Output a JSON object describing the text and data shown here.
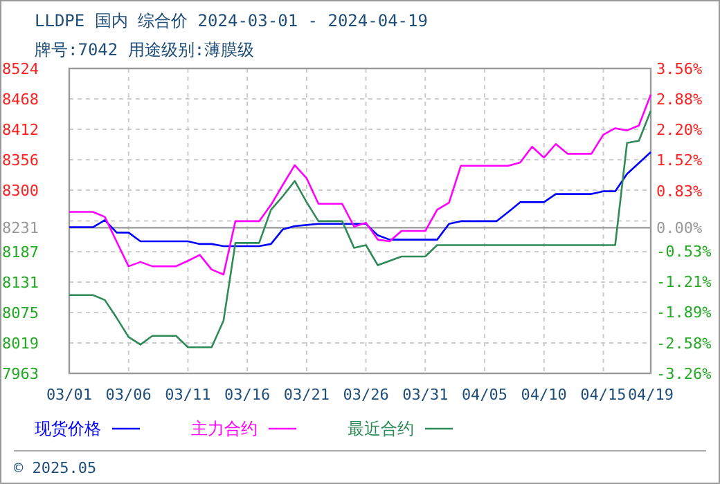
{
  "chart_data": {
    "type": "line",
    "title": "LLDPE 国内 综合价 2024-03-01 - 2024-04-19",
    "subtitle": "牌号:7042 用途级别:薄膜级",
    "x": [
      "2024-03-01",
      "2024-03-02",
      "2024-03-03",
      "2024-03-04",
      "2024-03-05",
      "2024-03-06",
      "2024-03-07",
      "2024-03-08",
      "2024-03-09",
      "2024-03-10",
      "2024-03-11",
      "2024-03-12",
      "2024-03-13",
      "2024-03-14",
      "2024-03-15",
      "2024-03-16",
      "2024-03-17",
      "2024-03-18",
      "2024-03-19",
      "2024-03-20",
      "2024-03-21",
      "2024-03-22",
      "2024-03-23",
      "2024-03-24",
      "2024-03-25",
      "2024-03-26",
      "2024-03-27",
      "2024-03-28",
      "2024-03-29",
      "2024-03-30",
      "2024-03-31",
      "2024-04-01",
      "2024-04-02",
      "2024-04-03",
      "2024-04-04",
      "2024-04-05",
      "2024-04-06",
      "2024-04-07",
      "2024-04-08",
      "2024-04-09",
      "2024-04-10",
      "2024-04-11",
      "2024-04-12",
      "2024-04-13",
      "2024-04-14",
      "2024-04-15",
      "2024-04-16",
      "2024-04-17",
      "2024-04-18",
      "2024-04-19"
    ],
    "series": [
      {
        "name": "现货价格",
        "color": "#0000ff",
        "values": [
          8232,
          8232,
          8232,
          8245,
          8222,
          8222,
          8206,
          8206,
          8206,
          8206,
          8206,
          8201,
          8201,
          8197,
          8197,
          8197,
          8197,
          8201,
          8228,
          8234,
          8236,
          8238,
          8238,
          8238,
          8238,
          8238,
          8217,
          8209,
          8209,
          8209,
          8209,
          8209,
          8238,
          8243,
          8243,
          8243,
          8243,
          8260,
          8278,
          8278,
          8278,
          8293,
          8293,
          8293,
          8293,
          8298,
          8298,
          8330,
          8350,
          8370
        ]
      },
      {
        "name": "主力合约",
        "color": "#ff00ff",
        "values": [
          8260,
          8260,
          8260,
          8251,
          8205,
          8160,
          8168,
          8160,
          8160,
          8160,
          8170,
          8181,
          8154,
          8145,
          8243,
          8243,
          8243,
          8273,
          8310,
          8346,
          8322,
          8275,
          8275,
          8275,
          8233,
          8240,
          8209,
          8206,
          8225,
          8225,
          8225,
          8264,
          8277,
          8345,
          8345,
          8345,
          8345,
          8345,
          8351,
          8380,
          8360,
          8385,
          8367,
          8367,
          8367,
          8402,
          8414,
          8410,
          8419,
          8476
        ]
      },
      {
        "name": "最近合约",
        "color": "#2e8b57",
        "values": [
          8107,
          8107,
          8107,
          8098,
          8065,
          8030,
          8016,
          8032,
          8032,
          8032,
          8011,
          8011,
          8011,
          8060,
          8203,
          8203,
          8203,
          8264,
          8289,
          8317,
          8278,
          8243,
          8243,
          8243,
          8194,
          8199,
          8162,
          8170,
          8178,
          8178,
          8178,
          8199,
          8199,
          8199,
          8199,
          8199,
          8199,
          8199,
          8199,
          8199,
          8199,
          8199,
          8199,
          8199,
          8199,
          8199,
          8199,
          8387,
          8391,
          8446
        ]
      }
    ],
    "xlim": [
      "2024-03-01",
      "2024-04-19"
    ],
    "xticks": [
      {
        "value": "2024-03-01",
        "label": "03/01"
      },
      {
        "value": "2024-03-06",
        "label": "03/06"
      },
      {
        "value": "2024-03-11",
        "label": "03/11"
      },
      {
        "value": "2024-03-16",
        "label": "03/16"
      },
      {
        "value": "2024-03-21",
        "label": "03/21"
      },
      {
        "value": "2024-03-26",
        "label": "03/26"
      },
      {
        "value": "2024-03-31",
        "label": "03/31"
      },
      {
        "value": "2024-04-05",
        "label": "04/05"
      },
      {
        "value": "2024-04-10",
        "label": "04/10"
      },
      {
        "value": "2024-04-15",
        "label": "04/15"
      },
      {
        "value": "2024-04-19",
        "label": "04/19"
      }
    ],
    "ylim": [
      7963,
      8524
    ],
    "yticks": [
      8524,
      8468,
      8412,
      8356,
      8300,
      {
        "value": 8243.5,
        "label": null
      },
      8187,
      8131,
      8075,
      8019,
      7963
    ],
    "y2lim": [
      -3.26,
      3.56
    ],
    "y2ticks": [
      {
        "value": 3.56,
        "label": "3.56%"
      },
      {
        "value": 2.88,
        "label": "2.88%"
      },
      {
        "value": 2.2,
        "label": "2.20%"
      },
      {
        "value": 1.52,
        "label": "1.52%"
      },
      {
        "value": 0.83,
        "label": "0.83%"
      },
      {
        "value": 0,
        "label": "0.00%"
      },
      {
        "value": -0.53,
        "label": "-0.53%"
      },
      {
        "value": -1.21,
        "label": "-1.21%"
      },
      {
        "value": -1.89,
        "label": "-1.89%"
      },
      {
        "value": -2.58,
        "label": "-2.58%"
      },
      {
        "value": -3.26,
        "label": "-3.26%"
      }
    ],
    "ref_lines": [
      {
        "axis": "y",
        "value": 8231,
        "label": "8231",
        "color": "#999999"
      }
    ],
    "grid": true,
    "legend": "bottom",
    "annotations": [
      "© 2025.05"
    ]
  }
}
